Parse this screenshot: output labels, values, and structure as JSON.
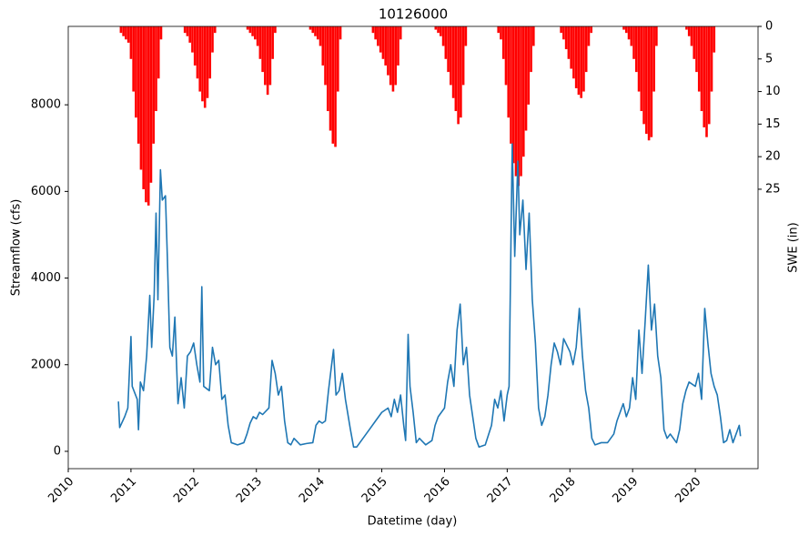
{
  "chart_data": {
    "type": "line",
    "title": "10126000",
    "xlabel": "Datetime (day)",
    "ylabel": "Streamflow (cfs)",
    "y2label": "SWE (in)",
    "xlim": [
      2010,
      2021.0
    ],
    "xticks": [
      2010,
      2011,
      2012,
      2013,
      2014,
      2015,
      2016,
      2017,
      2018,
      2019,
      2020
    ],
    "ylim": [
      -400,
      9810
    ],
    "yticks": [
      0,
      2000,
      4000,
      6000,
      8000
    ],
    "y2lim": [
      67.9,
      0
    ],
    "y2ticks": [
      0,
      5,
      10,
      15,
      20,
      25
    ],
    "series": [
      {
        "type": "bar",
        "axis": "y2",
        "color": "#ff0000",
        "x": [
          2010.84,
          2010.88,
          2010.92,
          2010.96,
          2011.0,
          2011.04,
          2011.08,
          2011.12,
          2011.16,
          2011.2,
          2011.24,
          2011.28,
          2011.32,
          2011.36,
          2011.4,
          2011.44,
          2011.48,
          2011.86,
          2011.9,
          2011.94,
          2011.98,
          2012.02,
          2012.06,
          2012.1,
          2012.14,
          2012.18,
          2012.22,
          2012.26,
          2012.3,
          2012.34,
          2012.86,
          2012.9,
          2012.94,
          2012.98,
          2013.02,
          2013.06,
          2013.1,
          2013.14,
          2013.18,
          2013.22,
          2013.26,
          2013.3,
          2013.86,
          2013.9,
          2013.94,
          2013.98,
          2014.02,
          2014.06,
          2014.1,
          2014.14,
          2014.18,
          2014.22,
          2014.26,
          2014.3,
          2014.34,
          2014.86,
          2014.9,
          2014.94,
          2014.98,
          2015.02,
          2015.06,
          2015.1,
          2015.14,
          2015.18,
          2015.22,
          2015.26,
          2015.3,
          2015.86,
          2015.9,
          2015.94,
          2015.98,
          2016.02,
          2016.06,
          2016.1,
          2016.14,
          2016.18,
          2016.22,
          2016.26,
          2016.3,
          2016.34,
          2016.86,
          2016.9,
          2016.94,
          2016.98,
          2017.02,
          2017.06,
          2017.1,
          2017.14,
          2017.18,
          2017.22,
          2017.26,
          2017.3,
          2017.34,
          2017.38,
          2017.42,
          2017.86,
          2017.9,
          2017.94,
          2017.98,
          2018.02,
          2018.06,
          2018.1,
          2018.14,
          2018.18,
          2018.22,
          2018.26,
          2018.3,
          2018.34,
          2018.86,
          2018.9,
          2018.94,
          2018.98,
          2019.02,
          2019.06,
          2019.1,
          2019.14,
          2019.18,
          2019.22,
          2019.26,
          2019.3,
          2019.34,
          2019.38,
          2019.86,
          2019.9,
          2019.94,
          2019.98,
          2020.02,
          2020.06,
          2020.1,
          2020.14,
          2020.18,
          2020.22,
          2020.26,
          2020.3
        ],
        "values": [
          1,
          1.5,
          2,
          2.5,
          5,
          10,
          14,
          18,
          22,
          25,
          27,
          27.5,
          24,
          18,
          13,
          8,
          2,
          1,
          1.5,
          2.5,
          4,
          6,
          8,
          10,
          11.5,
          12.5,
          11,
          8,
          4,
          1,
          0.5,
          1,
          1.5,
          2,
          3,
          5,
          7,
          9,
          10.5,
          9,
          5,
          1,
          0.5,
          1,
          1.5,
          2,
          3,
          6,
          9,
          13,
          16,
          18,
          18.5,
          10,
          2,
          1,
          2,
          3,
          4,
          5,
          6,
          7.5,
          9,
          10,
          9,
          6,
          2,
          0.5,
          1,
          1.5,
          3,
          5,
          7,
          9,
          11,
          13,
          15,
          14,
          9,
          3,
          1,
          2,
          5,
          9,
          14,
          18,
          21,
          23,
          24.5,
          23,
          20,
          16,
          12,
          7,
          3,
          1,
          2,
          3.5,
          5,
          6.5,
          8,
          9.5,
          10.5,
          11,
          10,
          7,
          3,
          1,
          0.5,
          1,
          2,
          3,
          5,
          7,
          10,
          13,
          15,
          16.5,
          17.5,
          17,
          10,
          3,
          0.5,
          1.5,
          3,
          5,
          7,
          10,
          13,
          15.5,
          17,
          15,
          10,
          4
        ]
      },
      {
        "type": "line",
        "color": "#1f77b4",
        "x": [
          2010.8,
          2010.82,
          2010.9,
          2010.95,
          2011.0,
          2011.02,
          2011.1,
          2011.12,
          2011.15,
          2011.2,
          2011.25,
          2011.3,
          2011.33,
          2011.37,
          2011.4,
          2011.43,
          2011.47,
          2011.5,
          2011.55,
          2011.58,
          2011.62,
          2011.66,
          2011.7,
          2011.75,
          2011.8,
          2011.85,
          2011.9,
          2011.95,
          2012.0,
          2012.05,
          2012.1,
          2012.13,
          2012.16,
          2012.25,
          2012.3,
          2012.35,
          2012.4,
          2012.45,
          2012.5,
          2012.55,
          2012.6,
          2012.7,
          2012.8,
          2012.85,
          2012.9,
          2012.95,
          2013.0,
          2013.05,
          2013.1,
          2013.2,
          2013.25,
          2013.3,
          2013.35,
          2013.4,
          2013.45,
          2013.5,
          2013.55,
          2013.6,
          2013.7,
          2013.8,
          2013.9,
          2013.95,
          2014.0,
          2014.05,
          2014.1,
          2014.15,
          2014.2,
          2014.23,
          2014.27,
          2014.32,
          2014.37,
          2014.42,
          2014.5,
          2014.55,
          2014.6,
          2014.7,
          2014.8,
          2014.9,
          2015.0,
          2015.1,
          2015.15,
          2015.2,
          2015.25,
          2015.3,
          2015.35,
          2015.38,
          2015.42,
          2015.45,
          2015.5,
          2015.55,
          2015.6,
          2015.7,
          2015.8,
          2015.85,
          2015.9,
          2016.0,
          2016.05,
          2016.1,
          2016.15,
          2016.2,
          2016.25,
          2016.3,
          2016.35,
          2016.4,
          2016.45,
          2016.5,
          2016.55,
          2016.65,
          2016.75,
          2016.8,
          2016.85,
          2016.9,
          2016.95,
          2017.0,
          2017.03,
          2017.08,
          2017.12,
          2017.17,
          2017.2,
          2017.25,
          2017.3,
          2017.35,
          2017.4,
          2017.45,
          2017.5,
          2017.55,
          2017.6,
          2017.65,
          2017.7,
          2017.75,
          2017.8,
          2017.85,
          2017.9,
          2018.0,
          2018.05,
          2018.1,
          2018.15,
          2018.2,
          2018.25,
          2018.3,
          2018.35,
          2018.4,
          2018.5,
          2018.6,
          2018.7,
          2018.75,
          2018.8,
          2018.85,
          2018.9,
          2018.95,
          2019.0,
          2019.05,
          2019.1,
          2019.15,
          2019.2,
          2019.25,
          2019.3,
          2019.35,
          2019.4,
          2019.45,
          2019.5,
          2019.55,
          2019.6,
          2019.7,
          2019.75,
          2019.8,
          2019.85,
          2019.9,
          2020.0,
          2020.05,
          2020.1,
          2020.15,
          2020.2,
          2020.25,
          2020.3,
          2020.35,
          2020.4,
          2020.45,
          2020.5,
          2020.55,
          2020.6,
          2020.65,
          2020.7,
          2020.72
        ],
        "values": [
          1150,
          550,
          800,
          1000,
          2650,
          1500,
          1200,
          500,
          1600,
          1400,
          2200,
          3600,
          2400,
          3600,
          5500,
          3500,
          6500,
          5800,
          5900,
          4500,
          2400,
          2200,
          3100,
          1100,
          1700,
          1000,
          2200,
          2300,
          2500,
          2000,
          1600,
          3800,
          1500,
          1400,
          2400,
          2000,
          2100,
          1200,
          1300,
          600,
          200,
          150,
          200,
          400,
          650,
          800,
          750,
          900,
          850,
          1000,
          2100,
          1800,
          1300,
          1500,
          700,
          200,
          150,
          300,
          150,
          180,
          200,
          600,
          700,
          650,
          700,
          1400,
          2000,
          2350,
          1300,
          1400,
          1800,
          1200,
          500,
          100,
          100,
          300,
          500,
          700,
          900,
          1000,
          800,
          1200,
          900,
          1300,
          600,
          250,
          2700,
          1500,
          900,
          200,
          300,
          150,
          250,
          600,
          800,
          1000,
          1600,
          2000,
          1500,
          2800,
          3400,
          2000,
          2400,
          1300,
          800,
          300,
          100,
          150,
          600,
          1200,
          1000,
          1400,
          700,
          1300,
          1500,
          7100,
          4500,
          6700,
          5000,
          5800,
          4200,
          5500,
          3500,
          2500,
          1000,
          600,
          800,
          1300,
          2000,
          2500,
          2300,
          2000,
          2600,
          2300,
          2000,
          2400,
          3300,
          2200,
          1400,
          1000,
          300,
          150,
          200,
          200,
          400,
          700,
          900,
          1100,
          800,
          1000,
          1700,
          1200,
          2800,
          1800,
          3000,
          4300,
          2800,
          3400,
          2200,
          1700,
          500,
          300,
          400,
          200,
          500,
          1100,
          1400,
          1600,
          1500,
          1800,
          1200,
          3300,
          2500,
          1800,
          1500,
          1300,
          800,
          200,
          250,
          500,
          200,
          400,
          600,
          350
        ]
      }
    ]
  }
}
